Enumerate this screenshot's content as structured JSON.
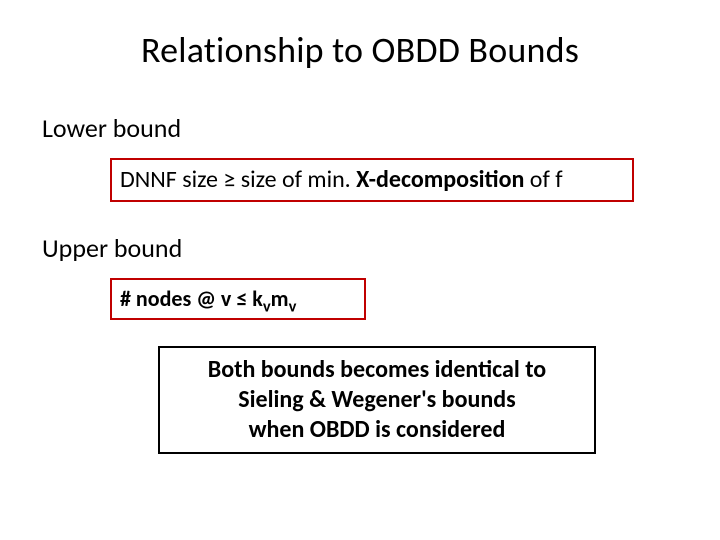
{
  "title": "Relationship to OBDD Bounds",
  "lower_bound": {
    "heading": "Lower bound",
    "box": {
      "prefix": "DNNF size ",
      "op": "≥",
      "mid": "  size of min. ",
      "bold_part": "X-decomposition",
      "suffix": " of  f",
      "border_color": "#c00000"
    }
  },
  "upper_bound": {
    "heading": "Upper bound",
    "box": {
      "prefix": "# nodes @ v   ",
      "op": "≤",
      "k": " k",
      "sub1": "v",
      "m": "m",
      "sub2": "v",
      "border_color": "#c00000"
    }
  },
  "conclusion": {
    "line1": "Both bounds becomes identical to",
    "line2": "Sieling & Wegener's bounds",
    "line3": "when OBDD is considered",
    "border_color": "#000000"
  },
  "colors": {
    "background": "#ffffff",
    "text": "#000000"
  }
}
